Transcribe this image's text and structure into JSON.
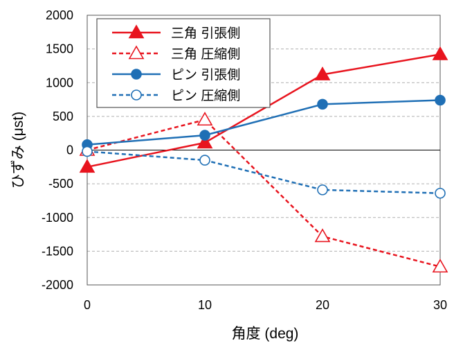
{
  "chart_data": {
    "type": "line",
    "xlabel": "角度 (deg)",
    "ylabel": "ひずみ (μst)",
    "x": [
      0,
      10,
      20,
      30
    ],
    "xlim": [
      0,
      30
    ],
    "ylim": [
      -2000,
      2000
    ],
    "x_ticks": [
      "0",
      "10",
      "20",
      "30"
    ],
    "y_ticks": [
      "2000",
      "1500",
      "1000",
      "500",
      "0",
      "-500",
      "-1000",
      "-1500",
      "-2000"
    ],
    "grid": "horizontal dashed",
    "legend_position": "top-left",
    "series": [
      {
        "name": "三角 引張側",
        "values": [
          -250,
          110,
          1120,
          1420
        ],
        "color": "#e8141e",
        "line": "solid",
        "marker": "triangle-filled"
      },
      {
        "name": "三角 圧縮側",
        "values": [
          0,
          450,
          -1280,
          -1730
        ],
        "color": "#e8141e",
        "line": "dashed",
        "marker": "triangle-open"
      },
      {
        "name": "ピン 引張側",
        "values": [
          80,
          220,
          680,
          740
        ],
        "color": "#1f6fb5",
        "line": "solid",
        "marker": "circle-filled"
      },
      {
        "name": "ピン 圧縮側",
        "values": [
          -20,
          -150,
          -590,
          -640
        ],
        "color": "#1f6fb5",
        "line": "dashed",
        "marker": "circle-open"
      }
    ]
  }
}
